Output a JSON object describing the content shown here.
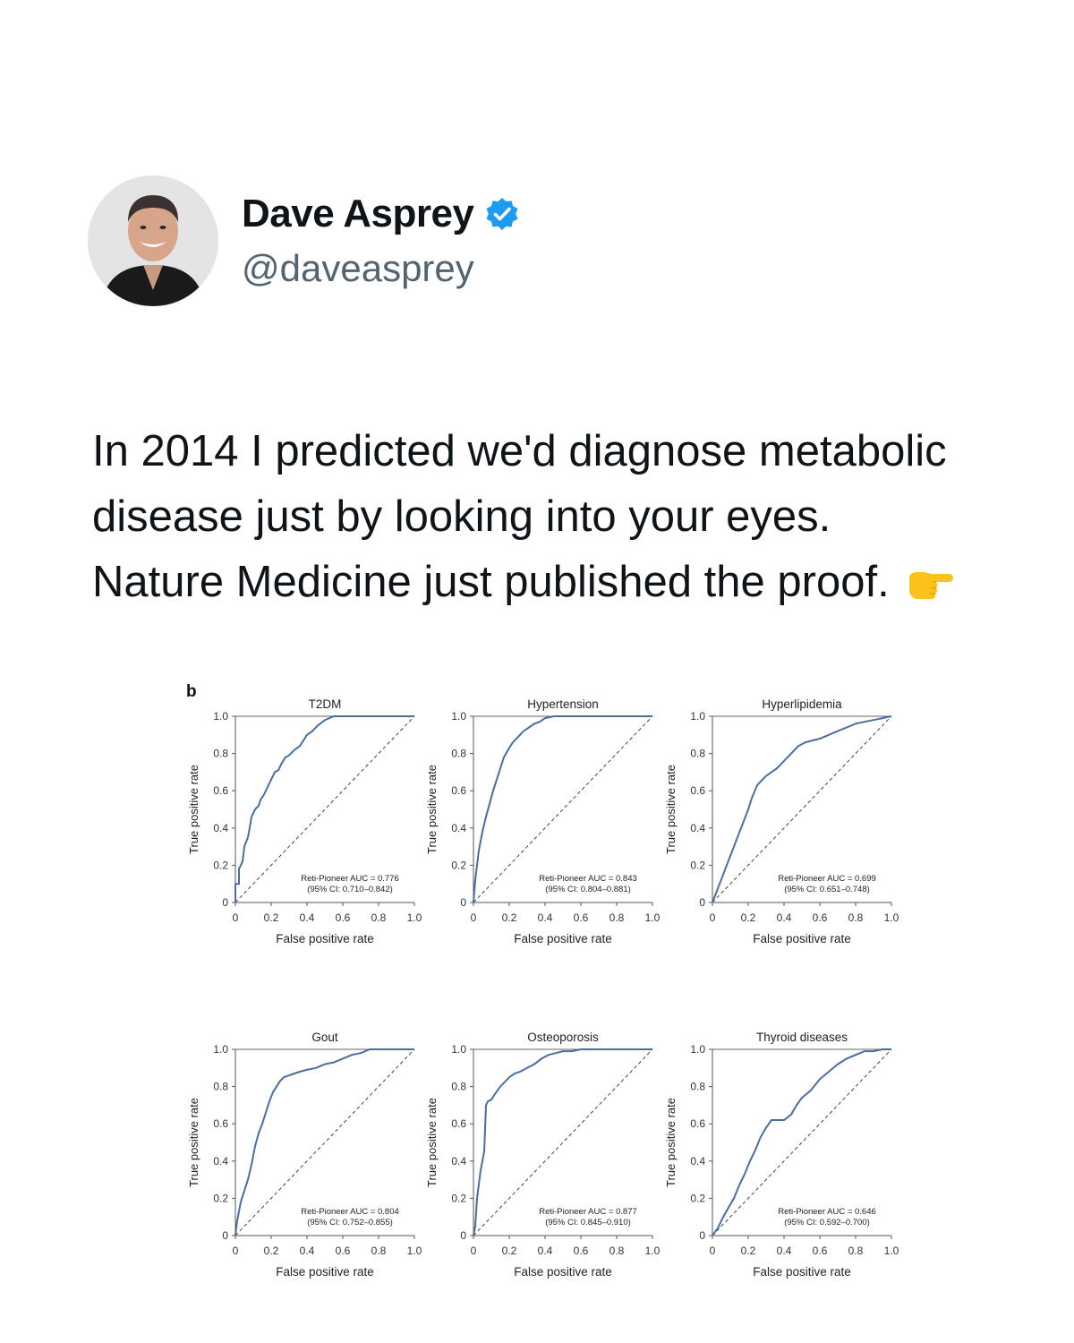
{
  "tweet": {
    "author_name": "Dave Asprey",
    "handle": "@daveasprey",
    "verified_icon": "verified-badge-icon",
    "text_lines": [
      "In 2014 I predicted we'd diagnose metabolic",
      "disease just by looking into your eyes.",
      "Nature Medicine just published the proof."
    ],
    "emoji": "pointing-right-hand-icon"
  },
  "figure": {
    "panel_label": "b",
    "line_color": "#4a6f9e"
  },
  "chart_data": [
    {
      "type": "line",
      "title": "T2DM",
      "xlabel": "False positive rate",
      "ylabel": "True positive rate",
      "xlim": [
        0,
        1
      ],
      "ylim": [
        0,
        1
      ],
      "xticks": [
        "0",
        "0.2",
        "0.4",
        "0.6",
        "0.8",
        "1.0"
      ],
      "yticks": [
        "0",
        "0.2",
        "0.4",
        "0.6",
        "0.8",
        "1.0"
      ],
      "annotation": [
        "Reti-Pioneer AUC = 0.776",
        "(95% CI: 0.710–0.842)"
      ],
      "x": [
        0,
        0,
        0.02,
        0.02,
        0.04,
        0.05,
        0.07,
        0.08,
        0.09,
        0.11,
        0.13,
        0.14,
        0.16,
        0.18,
        0.2,
        0.22,
        0.24,
        0.26,
        0.28,
        0.3,
        0.33,
        0.36,
        0.38,
        0.4,
        0.43,
        0.46,
        0.5,
        0.55,
        0.6,
        0.65,
        0.7,
        0.75,
        0.8,
        0.9,
        1.0
      ],
      "y": [
        0,
        0.1,
        0.1,
        0.18,
        0.22,
        0.3,
        0.35,
        0.4,
        0.46,
        0.5,
        0.52,
        0.55,
        0.58,
        0.62,
        0.66,
        0.7,
        0.71,
        0.75,
        0.78,
        0.79,
        0.82,
        0.84,
        0.87,
        0.9,
        0.92,
        0.95,
        0.98,
        1.0,
        1.0,
        1.0,
        1.0,
        1.0,
        1.0,
        1.0,
        1.0
      ]
    },
    {
      "type": "line",
      "title": "Hypertension",
      "xlabel": "False positive rate",
      "ylabel": "True positive rate",
      "xlim": [
        0,
        1
      ],
      "ylim": [
        0,
        1
      ],
      "xticks": [
        "0",
        "0.2",
        "0.4",
        "0.6",
        "0.8",
        "1.0"
      ],
      "yticks": [
        "0",
        "0.2",
        "0.4",
        "0.6",
        "0.8",
        "1.0"
      ],
      "annotation": [
        "Reti-Pioneer AUC = 0.843",
        "(95% CI: 0.804–0.881)"
      ],
      "x": [
        0,
        0.01,
        0.02,
        0.03,
        0.05,
        0.07,
        0.09,
        0.11,
        0.13,
        0.15,
        0.17,
        0.2,
        0.22,
        0.25,
        0.28,
        0.31,
        0.34,
        0.37,
        0.4,
        0.45,
        0.5,
        0.6,
        0.7,
        0.8,
        0.9,
        1.0
      ],
      "y": [
        0,
        0.12,
        0.2,
        0.28,
        0.38,
        0.46,
        0.53,
        0.6,
        0.66,
        0.72,
        0.78,
        0.83,
        0.86,
        0.89,
        0.92,
        0.94,
        0.96,
        0.97,
        0.99,
        1.0,
        1.0,
        1.0,
        1.0,
        1.0,
        1.0,
        1.0
      ]
    },
    {
      "type": "line",
      "title": "Hyperlipidemia",
      "xlabel": "False positive rate",
      "ylabel": "True positive rate",
      "xlim": [
        0,
        1
      ],
      "ylim": [
        0,
        1
      ],
      "xticks": [
        "0",
        "0.2",
        "0.4",
        "0.6",
        "0.8",
        "1.0"
      ],
      "yticks": [
        "0",
        "0.2",
        "0.4",
        "0.6",
        "0.8",
        "1.0"
      ],
      "annotation": [
        "Reti-Pioneer AUC = 0.699",
        "(95% CI: 0.651–0.748)"
      ],
      "x": [
        0,
        0.02,
        0.04,
        0.06,
        0.08,
        0.1,
        0.12,
        0.14,
        0.16,
        0.18,
        0.2,
        0.22,
        0.25,
        0.28,
        0.3,
        0.33,
        0.36,
        0.4,
        0.44,
        0.48,
        0.52,
        0.56,
        0.6,
        0.65,
        0.7,
        0.75,
        0.8,
        0.85,
        0.9,
        0.95,
        1.0
      ],
      "y": [
        0,
        0.05,
        0.1,
        0.15,
        0.2,
        0.25,
        0.3,
        0.35,
        0.4,
        0.45,
        0.5,
        0.56,
        0.63,
        0.66,
        0.68,
        0.7,
        0.72,
        0.76,
        0.8,
        0.84,
        0.86,
        0.87,
        0.88,
        0.9,
        0.92,
        0.94,
        0.96,
        0.97,
        0.98,
        0.99,
        1.0
      ]
    },
    {
      "type": "line",
      "title": "Gout",
      "xlabel": "False positive rate",
      "ylabel": "True positive rate",
      "xlim": [
        0,
        1
      ],
      "ylim": [
        0,
        1
      ],
      "xticks": [
        "0",
        "0.2",
        "0.4",
        "0.6",
        "0.8",
        "1.0"
      ],
      "yticks": [
        "0",
        "0.2",
        "0.4",
        "0.6",
        "0.8",
        "1.0"
      ],
      "annotation": [
        "Reti-Pioneer AUC = 0.804",
        "(95% CI: 0.752–0.855)"
      ],
      "x": [
        0,
        0.01,
        0.03,
        0.05,
        0.07,
        0.09,
        0.11,
        0.13,
        0.15,
        0.17,
        0.19,
        0.21,
        0.23,
        0.25,
        0.27,
        0.3,
        0.33,
        0.36,
        0.4,
        0.45,
        0.5,
        0.55,
        0.6,
        0.65,
        0.7,
        0.75,
        0.8,
        0.9,
        1.0
      ],
      "y": [
        0,
        0.08,
        0.18,
        0.24,
        0.3,
        0.38,
        0.48,
        0.55,
        0.6,
        0.66,
        0.72,
        0.77,
        0.8,
        0.83,
        0.85,
        0.86,
        0.87,
        0.88,
        0.89,
        0.9,
        0.92,
        0.93,
        0.95,
        0.97,
        0.98,
        1.0,
        1.0,
        1.0,
        1.0
      ]
    },
    {
      "type": "line",
      "title": "Osteoporosis",
      "xlabel": "False positive rate",
      "ylabel": "True positive rate",
      "xlim": [
        0,
        1
      ],
      "ylim": [
        0,
        1
      ],
      "xticks": [
        "0",
        "0.2",
        "0.4",
        "0.6",
        "0.8",
        "1.0"
      ],
      "yticks": [
        "0",
        "0.2",
        "0.4",
        "0.6",
        "0.8",
        "1.0"
      ],
      "annotation": [
        "Reti-Pioneer AUC = 0.877",
        "(95% CI: 0.845–0.910)"
      ],
      "x": [
        0,
        0.01,
        0.02,
        0.04,
        0.06,
        0.07,
        0.08,
        0.1,
        0.12,
        0.15,
        0.18,
        0.2,
        0.23,
        0.26,
        0.3,
        0.34,
        0.38,
        0.42,
        0.46,
        0.5,
        0.55,
        0.6,
        0.65,
        0.7,
        0.8,
        0.9,
        1.0
      ],
      "y": [
        0,
        0.05,
        0.2,
        0.35,
        0.45,
        0.7,
        0.72,
        0.73,
        0.76,
        0.8,
        0.83,
        0.85,
        0.87,
        0.88,
        0.9,
        0.92,
        0.95,
        0.97,
        0.98,
        0.99,
        0.99,
        1.0,
        1.0,
        1.0,
        1.0,
        1.0,
        1.0
      ]
    },
    {
      "type": "line",
      "title": "Thyroid diseases",
      "xlabel": "False positive rate",
      "ylabel": "True positive rate",
      "xlim": [
        0,
        1
      ],
      "ylim": [
        0,
        1
      ],
      "xticks": [
        "0",
        "0.2",
        "0.4",
        "0.6",
        "0.8",
        "1.0"
      ],
      "yticks": [
        "0",
        "0.2",
        "0.4",
        "0.6",
        "0.8",
        "1.0"
      ],
      "annotation": [
        "Reti-Pioneer AUC = 0.646",
        "(95% CI: 0.592–0.700)"
      ],
      "x": [
        0,
        0.03,
        0.06,
        0.09,
        0.12,
        0.15,
        0.18,
        0.21,
        0.24,
        0.27,
        0.3,
        0.33,
        0.35,
        0.4,
        0.44,
        0.47,
        0.5,
        0.55,
        0.6,
        0.65,
        0.7,
        0.75,
        0.8,
        0.85,
        0.9,
        0.95,
        1.0
      ],
      "y": [
        0,
        0.04,
        0.1,
        0.15,
        0.2,
        0.27,
        0.33,
        0.4,
        0.46,
        0.53,
        0.58,
        0.62,
        0.62,
        0.62,
        0.65,
        0.7,
        0.74,
        0.78,
        0.84,
        0.88,
        0.92,
        0.95,
        0.97,
        0.99,
        0.99,
        1.0,
        1.0
      ]
    }
  ]
}
